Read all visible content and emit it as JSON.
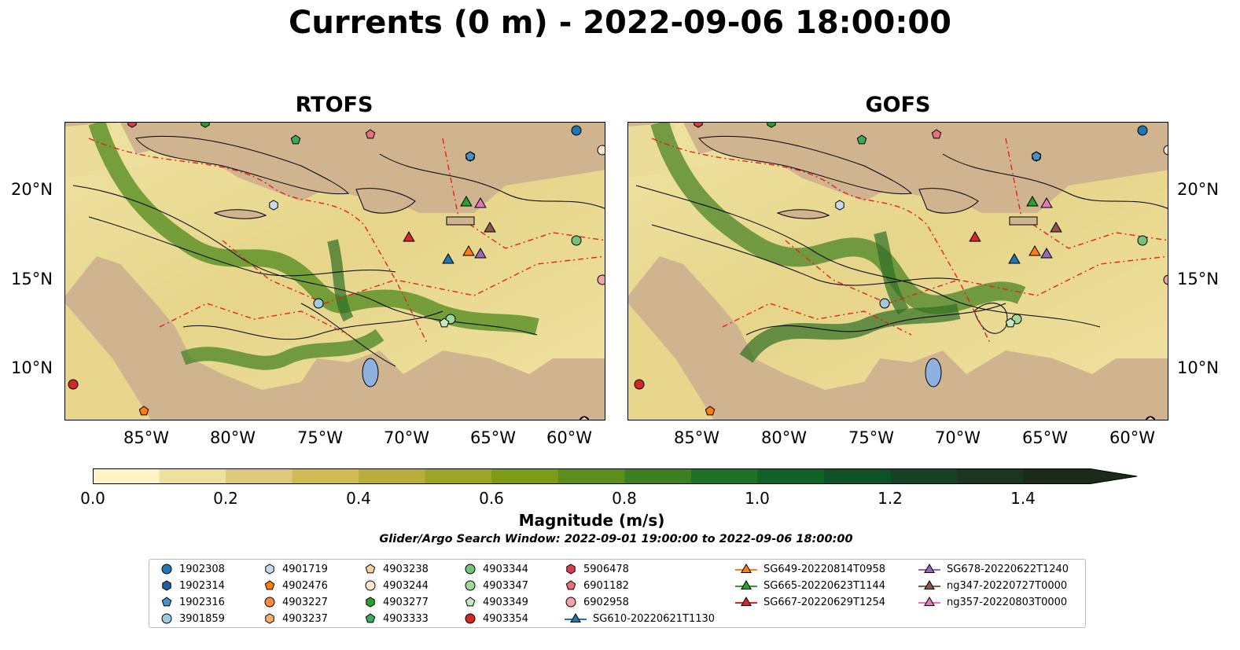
{
  "title": "Currents (0 m) - 2022-09-06 18:00:00",
  "panels": [
    {
      "title": "RTOFS"
    },
    {
      "title": "GOFS"
    }
  ],
  "axes": {
    "lat_ticks": [
      "20°N",
      "15°N",
      "10°N"
    ],
    "lon_ticks": [
      "85°W",
      "80°W",
      "75°W",
      "70°W",
      "65°W",
      "60°W"
    ]
  },
  "colorbar": {
    "label": "Magnitude (m/s)",
    "ticks": [
      "0.0",
      "0.2",
      "0.4",
      "0.6",
      "0.8",
      "1.0",
      "1.2",
      "1.4"
    ],
    "range": [
      0.0,
      1.5
    ],
    "extend": "max",
    "colors": [
      "#fdf5c6",
      "#efe0a0",
      "#dfc97a",
      "#d0bb55",
      "#b9ad3c",
      "#9ca524",
      "#7d9b16",
      "#5d8d1a",
      "#3d8022",
      "#1e7227",
      "#0f6327",
      "#0d5326",
      "#164226",
      "#1a3520",
      "#1b2b19"
    ]
  },
  "search_window": "Glider/Argo Search Window: 2022-09-01 19:00:00 to 2022-09-06 18:00:00",
  "legend": {
    "floats": [
      {
        "label": "1902308",
        "marker": "circle",
        "color": "#1f77b4"
      },
      {
        "label": "1902314",
        "marker": "hexagon",
        "color": "#1f5fa0"
      },
      {
        "label": "1902316",
        "marker": "pentagon",
        "color": "#4a90c8"
      },
      {
        "label": "3901859",
        "marker": "circle",
        "color": "#9ecae1"
      },
      {
        "label": "4901719",
        "marker": "hexagon",
        "color": "#c6dbef"
      },
      {
        "label": "4902476",
        "marker": "pentagon",
        "color": "#ff7f0e"
      },
      {
        "label": "4903227",
        "marker": "circle",
        "color": "#fd8d3c"
      },
      {
        "label": "4903237",
        "marker": "hexagon",
        "color": "#fdae6b"
      },
      {
        "label": "4903238",
        "marker": "pentagon",
        "color": "#fdd0a2"
      },
      {
        "label": "4903244",
        "marker": "circle",
        "color": "#fee6ce"
      },
      {
        "label": "4903277",
        "marker": "hexagon",
        "color": "#2ca02c"
      },
      {
        "label": "4903333",
        "marker": "pentagon",
        "color": "#41ab5d"
      },
      {
        "label": "4903344",
        "marker": "circle",
        "color": "#74c476"
      },
      {
        "label": "4903347",
        "marker": "circle",
        "color": "#a1d99b"
      },
      {
        "label": "4903349",
        "marker": "pentagon",
        "color": "#c7e9c0"
      },
      {
        "label": "4903354",
        "marker": "circle",
        "color": "#d62728"
      },
      {
        "label": "5906478",
        "marker": "hexagon",
        "color": "#d6404e"
      },
      {
        "label": "6901182",
        "marker": "pentagon",
        "color": "#e8707a"
      },
      {
        "label": "6902958",
        "marker": "circle",
        "color": "#f4a0a8"
      }
    ],
    "gliders": [
      {
        "label": "SG610-20220621T1130",
        "color": "#1f77b4"
      },
      {
        "label": "SG649-20220814T0958",
        "color": "#ff7f0e"
      },
      {
        "label": "SG665-20220623T1144",
        "color": "#2ca02c"
      },
      {
        "label": "SG667-20220629T1254",
        "color": "#d62728"
      },
      {
        "label": "SG678-20220622T1240",
        "color": "#9467bd"
      },
      {
        "label": "ng347-20220727T0000",
        "color": "#8c564b"
      },
      {
        "label": "ng357-20220803T0000",
        "color": "#e377c2"
      }
    ]
  }
}
